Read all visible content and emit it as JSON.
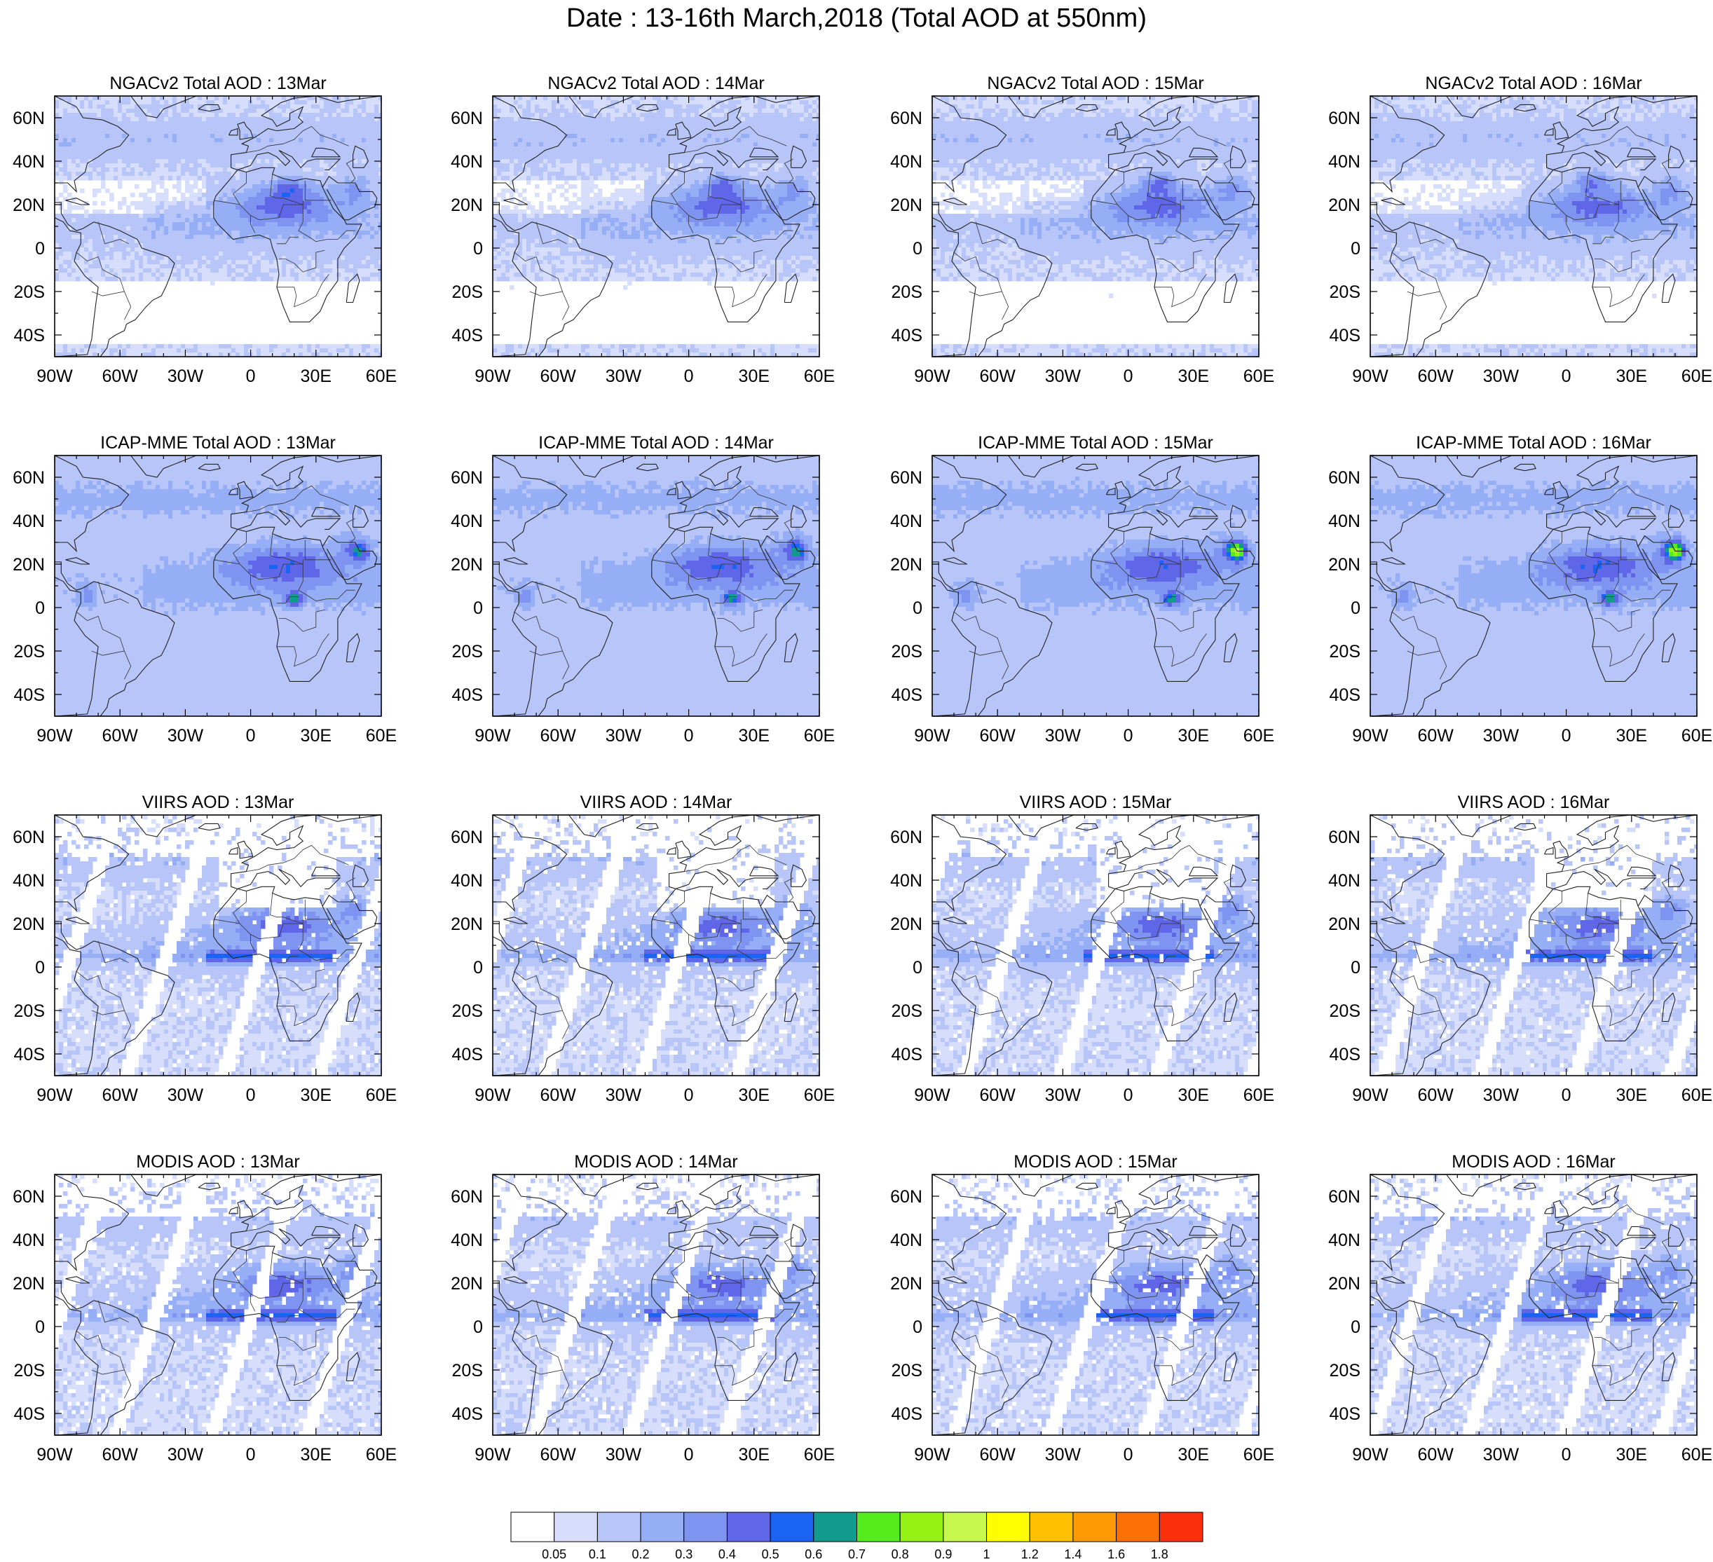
{
  "title": "Date : 13-16th March,2018 (Total AOD at 550nm)",
  "lon_tick_labels": [
    "90W",
    "60W",
    "30W",
    "0",
    "30E",
    "60E"
  ],
  "lat_tick_labels": [
    "60N",
    "40N",
    "20N",
    "0",
    "20S",
    "40S"
  ],
  "panels": [
    {
      "title": "NGACv2 Total AOD : 13Mar",
      "product": "NGACv2",
      "kind": "model"
    },
    {
      "title": "NGACv2 Total AOD : 14Mar",
      "product": "NGACv2",
      "kind": "model"
    },
    {
      "title": "NGACv2 Total AOD : 15Mar",
      "product": "NGACv2",
      "kind": "model"
    },
    {
      "title": "NGACv2 Total AOD : 16Mar",
      "product": "NGACv2",
      "kind": "model"
    },
    {
      "title": "ICAP-MME Total AOD : 13Mar",
      "product": "ICAP-MME",
      "kind": "model"
    },
    {
      "title": "ICAP-MME Total AOD : 14Mar",
      "product": "ICAP-MME",
      "kind": "model"
    },
    {
      "title": "ICAP-MME Total AOD : 15Mar",
      "product": "ICAP-MME",
      "kind": "model"
    },
    {
      "title": "ICAP-MME Total AOD : 16Mar",
      "product": "ICAP-MME",
      "kind": "model"
    },
    {
      "title": "VIIRS AOD : 13Mar",
      "product": "VIIRS",
      "kind": "satellite"
    },
    {
      "title": "VIIRS AOD : 14Mar",
      "product": "VIIRS",
      "kind": "satellite"
    },
    {
      "title": "VIIRS AOD : 15Mar",
      "product": "VIIRS",
      "kind": "satellite"
    },
    {
      "title": "VIIRS AOD : 16Mar",
      "product": "VIIRS",
      "kind": "satellite"
    },
    {
      "title": "MODIS AOD : 13Mar",
      "product": "MODIS",
      "kind": "satellite"
    },
    {
      "title": "MODIS AOD : 14Mar",
      "product": "MODIS",
      "kind": "satellite"
    },
    {
      "title": "MODIS AOD : 15Mar",
      "product": "MODIS",
      "kind": "satellite"
    },
    {
      "title": "MODIS AOD : 16Mar",
      "product": "MODIS",
      "kind": "satellite"
    }
  ],
  "colorbar": {
    "colors": [
      "#ffffff",
      "#d7defb",
      "#b7c5f8",
      "#95aef5",
      "#7f93f0",
      "#5f66e8",
      "#1b63f2",
      "#119a8e",
      "#55ec1e",
      "#95f214",
      "#c6f84d",
      "#fefe00",
      "#fec000",
      "#fd9a06",
      "#fc7106",
      "#fc2f0d"
    ],
    "labels": [
      "0.05",
      "0.1",
      "0.2",
      "0.3",
      "0.4",
      "0.5",
      "0.6",
      "0.7",
      "0.8",
      "0.9",
      "1",
      "1.2",
      "1.4",
      "1.6",
      "1.8"
    ]
  }
}
